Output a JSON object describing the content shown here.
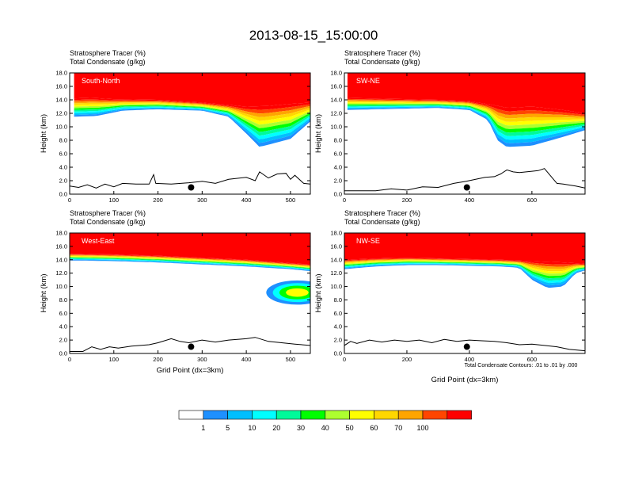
{
  "figure": {
    "title": "2013-08-15_15:00:00",
    "field_line_1": "Stratosphere Tracer   (%)",
    "field_line_2": "Total Condensate   (g/kg)",
    "xlabel": "Grid Point (dx=3km)",
    "ylabel": "Height (km)",
    "contour_note": "Total Condensate Contours: .01 to .01 by .000"
  },
  "colorbar": {
    "colors": [
      "#ffffff",
      "#1e90ff",
      "#00bfff",
      "#00ffff",
      "#00fa9a",
      "#00ff00",
      "#adff2f",
      "#ffff00",
      "#ffd700",
      "#ffa500",
      "#ff4500",
      "#ff0000"
    ],
    "labels": [
      "1",
      "5",
      "10",
      "20",
      "30",
      "40",
      "50",
      "60",
      "70",
      "100"
    ]
  },
  "chart_data": [
    {
      "type": "heatmap",
      "label": "South-North",
      "xlim": [
        0,
        545
      ],
      "ylim": [
        0,
        18
      ],
      "xticks": [
        "0",
        "100",
        "200",
        "300",
        "400",
        "500"
      ],
      "yticks": [
        "0.0",
        "2.0",
        "4.0",
        "6.0",
        "8.0",
        "10.0",
        "12.0",
        "14.0",
        "16.0",
        "18.0"
      ],
      "tropopause_km": [
        [
          0,
          14.2
        ],
        [
          50,
          14.3
        ],
        [
          100,
          14.1
        ],
        [
          200,
          14.0
        ],
        [
          300,
          13.6
        ],
        [
          350,
          13.3
        ],
        [
          400,
          13.0
        ],
        [
          450,
          13.1
        ],
        [
          500,
          13.4
        ],
        [
          545,
          13.6
        ]
      ],
      "lower_tongue": [
        [
          10,
          11.5
        ],
        [
          60,
          11.6
        ],
        [
          120,
          12.4
        ],
        [
          200,
          12.6
        ],
        [
          300,
          12.4
        ],
        [
          360,
          11.5
        ],
        [
          400,
          9.0
        ],
        [
          430,
          7.0
        ],
        [
          500,
          8.2
        ],
        [
          545,
          10.8
        ]
      ],
      "terrain_km": [
        [
          0,
          1.2
        ],
        [
          20,
          1.0
        ],
        [
          40,
          1.4
        ],
        [
          60,
          0.9
        ],
        [
          80,
          1.5
        ],
        [
          100,
          1.1
        ],
        [
          120,
          1.6
        ],
        [
          150,
          1.5
        ],
        [
          180,
          1.5
        ],
        [
          190,
          2.9
        ],
        [
          195,
          1.6
        ],
        [
          230,
          1.5
        ],
        [
          270,
          1.7
        ],
        [
          300,
          1.9
        ],
        [
          330,
          1.6
        ],
        [
          360,
          2.2
        ],
        [
          400,
          2.5
        ],
        [
          420,
          2.0
        ],
        [
          430,
          3.3
        ],
        [
          450,
          2.4
        ],
        [
          470,
          3.0
        ],
        [
          490,
          3.1
        ],
        [
          500,
          2.2
        ],
        [
          510,
          2.8
        ],
        [
          530,
          1.6
        ],
        [
          545,
          1.5
        ]
      ],
      "marker": [
        275,
        1.0
      ]
    },
    {
      "type": "heatmap",
      "label": "SW-NE",
      "xlim": [
        0,
        770
      ],
      "ylim": [
        0,
        18
      ],
      "xticks": [
        "0",
        "200",
        "400",
        "600"
      ],
      "yticks": [
        "0.0",
        "2.0",
        "4.0",
        "6.0",
        "8.0",
        "10.0",
        "12.0",
        "14.0",
        "16.0",
        "18.0"
      ],
      "tropopause_km": [
        [
          0,
          14.3
        ],
        [
          100,
          14.2
        ],
        [
          200,
          14.1
        ],
        [
          300,
          14.0
        ],
        [
          400,
          13.8
        ],
        [
          480,
          13.2
        ],
        [
          520,
          12.8
        ],
        [
          600,
          13.0
        ],
        [
          700,
          12.5
        ],
        [
          770,
          12.0
        ]
      ],
      "lower_tongue": [
        [
          10,
          12.5
        ],
        [
          100,
          12.6
        ],
        [
          200,
          12.7
        ],
        [
          300,
          12.8
        ],
        [
          400,
          12.5
        ],
        [
          460,
          11.0
        ],
        [
          490,
          8.0
        ],
        [
          520,
          7.0
        ],
        [
          600,
          7.2
        ],
        [
          700,
          8.5
        ],
        [
          770,
          9.5
        ]
      ],
      "terrain_km": [
        [
          0,
          0.5
        ],
        [
          100,
          0.5
        ],
        [
          150,
          0.8
        ],
        [
          200,
          0.6
        ],
        [
          250,
          1.1
        ],
        [
          300,
          1.0
        ],
        [
          350,
          1.6
        ],
        [
          390,
          1.9
        ],
        [
          420,
          2.2
        ],
        [
          450,
          2.5
        ],
        [
          480,
          2.6
        ],
        [
          500,
          3.0
        ],
        [
          520,
          3.6
        ],
        [
          540,
          3.3
        ],
        [
          560,
          3.2
        ],
        [
          600,
          3.4
        ],
        [
          620,
          3.5
        ],
        [
          640,
          3.8
        ],
        [
          660,
          2.7
        ],
        [
          680,
          1.6
        ],
        [
          700,
          1.5
        ],
        [
          740,
          1.2
        ],
        [
          770,
          0.9
        ]
      ],
      "marker": [
        392,
        1.0
      ]
    },
    {
      "type": "heatmap",
      "label": "West-East",
      "xlim": [
        0,
        545
      ],
      "ylim": [
        0,
        18
      ],
      "xticks": [
        "0",
        "100",
        "200",
        "300",
        "400",
        "500"
      ],
      "yticks": [
        "0.0",
        "2.0",
        "4.0",
        "6.0",
        "8.0",
        "10.0",
        "12.0",
        "14.0",
        "16.0",
        "18.0"
      ],
      "tropopause_km": [
        [
          0,
          14.9
        ],
        [
          100,
          14.8
        ],
        [
          200,
          14.6
        ],
        [
          300,
          14.3
        ],
        [
          400,
          14.0
        ],
        [
          500,
          13.5
        ],
        [
          545,
          13.3
        ]
      ],
      "lower_tongue": [
        [
          0,
          13.9
        ],
        [
          100,
          13.8
        ],
        [
          200,
          13.6
        ],
        [
          300,
          13.3
        ],
        [
          400,
          13.0
        ],
        [
          500,
          12.6
        ],
        [
          545,
          12.3
        ]
      ],
      "terrain_km": [
        [
          0,
          0.3
        ],
        [
          30,
          0.3
        ],
        [
          50,
          1.0
        ],
        [
          70,
          0.6
        ],
        [
          90,
          1.0
        ],
        [
          110,
          0.8
        ],
        [
          140,
          1.1
        ],
        [
          180,
          1.3
        ],
        [
          200,
          1.6
        ],
        [
          230,
          2.2
        ],
        [
          250,
          1.8
        ],
        [
          270,
          1.6
        ],
        [
          300,
          2.0
        ],
        [
          330,
          1.7
        ],
        [
          360,
          2.0
        ],
        [
          400,
          2.2
        ],
        [
          420,
          2.4
        ],
        [
          450,
          1.8
        ],
        [
          480,
          1.6
        ],
        [
          510,
          1.4
        ],
        [
          545,
          1.2
        ]
      ],
      "marker": [
        275,
        1.0
      ],
      "cloud_patch": [
        [
          450,
          8.0
        ],
        [
          545,
          10.2
        ]
      ]
    },
    {
      "type": "heatmap",
      "label": "NW-SE",
      "xlim": [
        0,
        770
      ],
      "ylim": [
        0,
        18
      ],
      "xticks": [
        "0",
        "200",
        "400",
        "600"
      ],
      "yticks": [
        "0.0",
        "2.0",
        "4.0",
        "6.0",
        "8.0",
        "10.0",
        "12.0",
        "14.0",
        "16.0",
        "18.0"
      ],
      "tropopause_km": [
        [
          0,
          14.0
        ],
        [
          100,
          14.2
        ],
        [
          200,
          14.3
        ],
        [
          300,
          14.2
        ],
        [
          400,
          14.1
        ],
        [
          500,
          14.0
        ],
        [
          600,
          13.8
        ],
        [
          700,
          13.6
        ],
        [
          770,
          13.4
        ]
      ],
      "lower_tongue": [
        [
          0,
          12.6
        ],
        [
          100,
          13.0
        ],
        [
          200,
          13.2
        ],
        [
          300,
          13.2
        ],
        [
          400,
          13.1
        ],
        [
          500,
          13.0
        ],
        [
          560,
          12.8
        ],
        [
          600,
          11.0
        ],
        [
          650,
          9.8
        ],
        [
          700,
          10.0
        ],
        [
          740,
          12.0
        ],
        [
          770,
          12.4
        ]
      ],
      "terrain_km": [
        [
          0,
          1.2
        ],
        [
          20,
          1.8
        ],
        [
          40,
          1.5
        ],
        [
          80,
          2.0
        ],
        [
          120,
          1.7
        ],
        [
          160,
          2.0
        ],
        [
          200,
          1.8
        ],
        [
          240,
          2.0
        ],
        [
          280,
          1.6
        ],
        [
          320,
          2.1
        ],
        [
          360,
          1.8
        ],
        [
          400,
          2.0
        ],
        [
          440,
          1.9
        ],
        [
          480,
          1.8
        ],
        [
          520,
          1.6
        ],
        [
          560,
          1.3
        ],
        [
          600,
          1.4
        ],
        [
          640,
          1.2
        ],
        [
          680,
          1.0
        ],
        [
          720,
          0.6
        ],
        [
          770,
          0.4
        ]
      ],
      "marker": [
        392,
        1.0
      ]
    }
  ]
}
